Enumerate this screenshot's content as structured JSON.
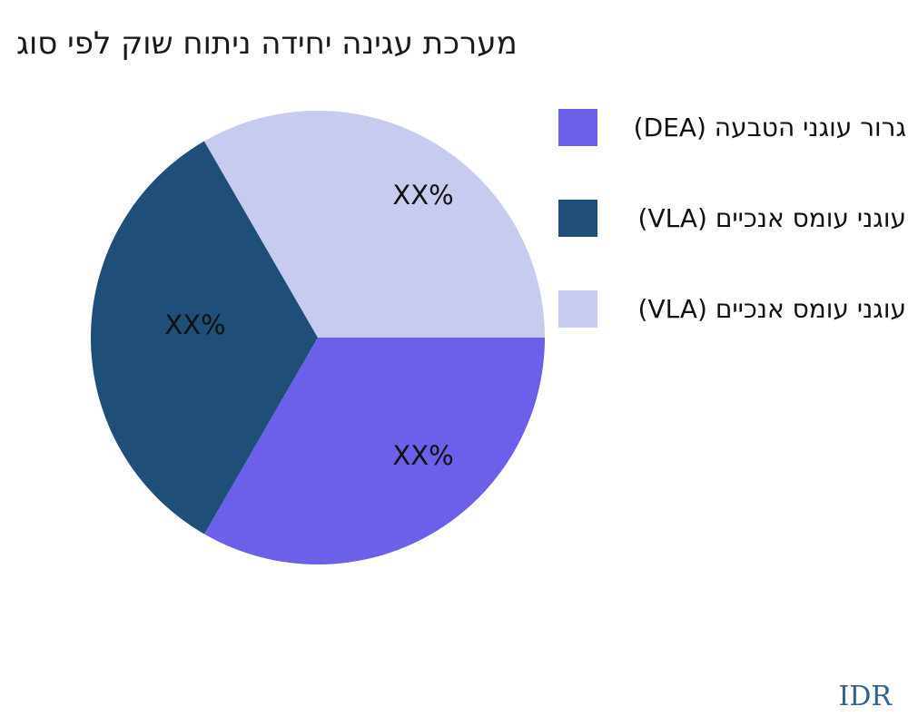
{
  "title": "מערכת עגינה יחידה ניתוח שוק לפי סוג",
  "watermark": "IDR",
  "legend": {
    "position": "right",
    "items": [
      {
        "label": "גרור עוגני הטבעה (DEA)",
        "color": "#6c60eb"
      },
      {
        "label": "עוגני עומס אנכיים (VLA)",
        "color": "#1f4e78"
      },
      {
        "label": "עוגני עומס אנכיים (VLA)",
        "color": "#c7cbef"
      }
    ]
  },
  "chart_data": {
    "type": "pie",
    "title": "מערכת עגינה יחידה ניתוח שוק לפי סוג",
    "start_angle_deg": 0,
    "direction": "clockwise",
    "legend_position": "right",
    "slices": [
      {
        "legend_label": "גרור עוגני הטבעה (DEA)",
        "value_pct": 33.33,
        "value_label": "XX%",
        "color": "#6c60eb"
      },
      {
        "legend_label": "עוגני עומס אנכיים (VLA)",
        "value_pct": 33.33,
        "value_label": "XX%",
        "color": "#1f4e78"
      },
      {
        "legend_label": "עוגני עומס אנכיים (VLA)",
        "value_pct": 33.34,
        "value_label": "XX%",
        "color": "#c7cbef"
      }
    ]
  }
}
